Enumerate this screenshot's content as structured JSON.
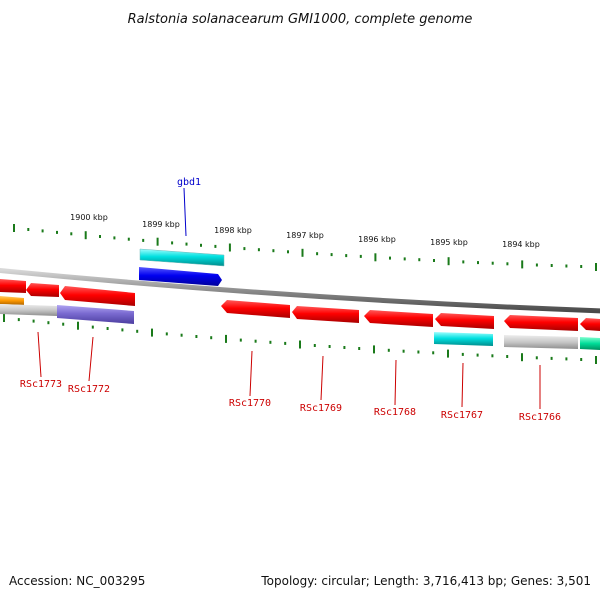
{
  "title": "Ralstonia solanacearum GMI1000, complete genome",
  "footer": {
    "accession": "Accession: NC_003295",
    "summary": "Topology: circular; Length: 3,716,413 bp; Genes: 3,501"
  },
  "colors": {
    "backbone": "#8c8c8c",
    "tick": "#1a7a1a",
    "forward_label": "#0000cc",
    "reverse_label": "#cc0000",
    "cds": "#ff0000",
    "gene": "#c8c8c8",
    "rrna": "#00c8c8",
    "trna": "#0000ee",
    "misc": "#7a6ad0",
    "orange": "#ff9900",
    "green": "#00dd99"
  },
  "position_labels": [
    "1900 kbp",
    "1899 kbp",
    "1898 kbp",
    "1897 kbp",
    "1896 kbp",
    "1895 kbp",
    "1894 kbp"
  ],
  "forward_gene_labels": [
    "gbd1"
  ],
  "reverse_gene_labels": [
    "RSc1773",
    "RSc1772",
    "RSc1770",
    "RSc1769",
    "RSc1768",
    "RSc1767",
    "RSc1766"
  ]
}
